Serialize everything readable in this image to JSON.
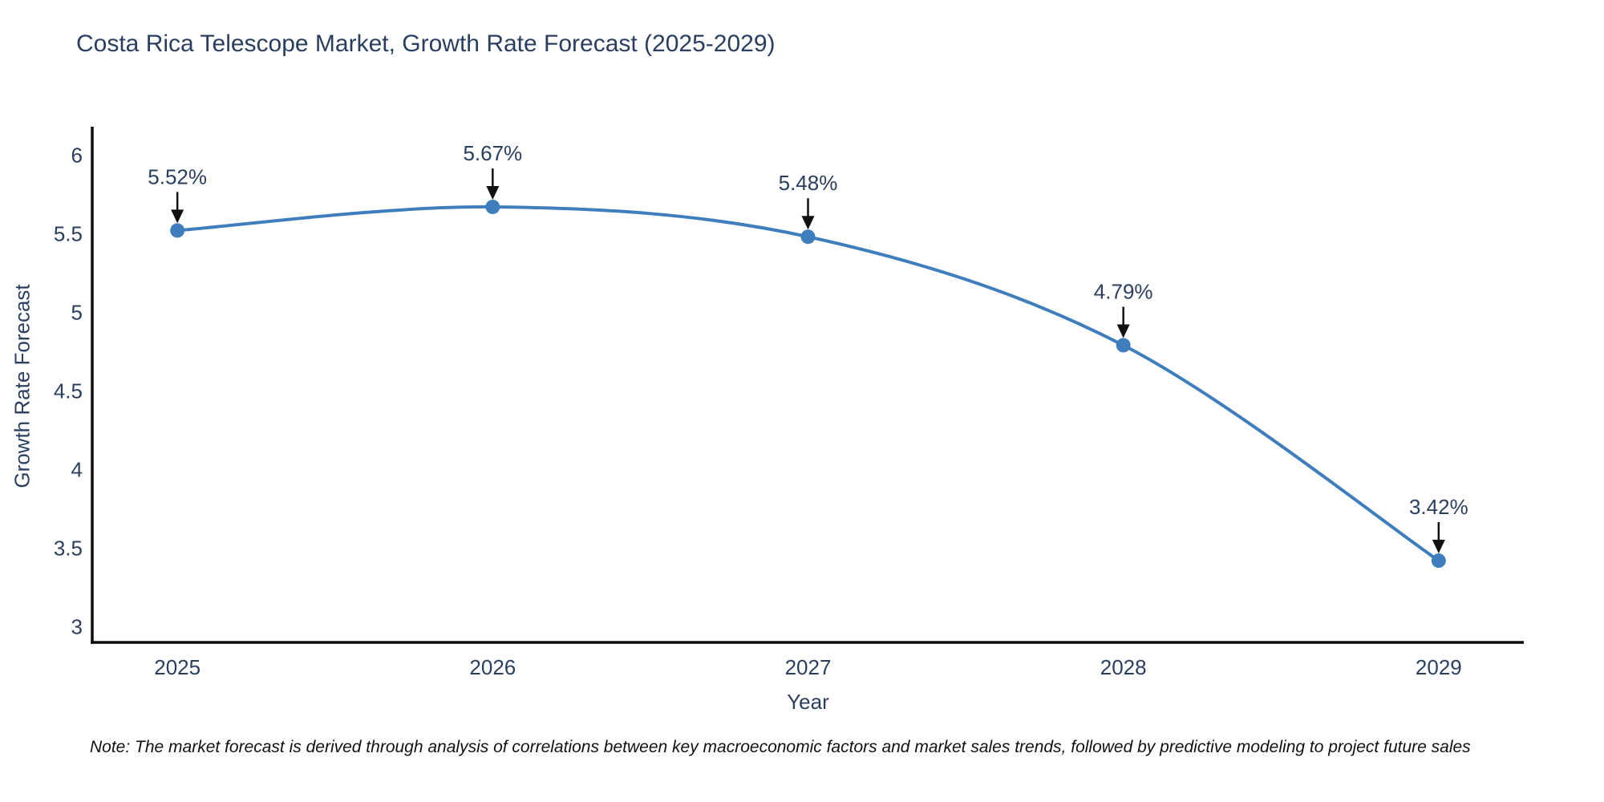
{
  "title": "Costa Rica Telescope Market, Growth Rate Forecast (2025-2029)",
  "note": "Note: The market forecast is derived through analysis of correlations between key macroeconomic factors and market sales trends, followed by predictive modeling to project future sales",
  "chart_data": {
    "type": "line",
    "title": "Costa Rica Telescope Market, Growth Rate Forecast (2025-2029)",
    "xlabel": "Year",
    "ylabel": "Growth Rate Forecast",
    "x": [
      2025,
      2026,
      2027,
      2028,
      2029
    ],
    "series": [
      {
        "name": "Growth Rate Forecast",
        "values": [
          5.52,
          5.67,
          5.48,
          4.79,
          3.42
        ]
      }
    ],
    "point_labels": [
      "5.52%",
      "5.67%",
      "5.48%",
      "4.79%",
      "3.42%"
    ],
    "xticks": [
      "2025",
      "2026",
      "2027",
      "2028",
      "2029"
    ],
    "yticks": [
      3,
      3.5,
      4,
      4.5,
      5,
      5.5,
      6
    ],
    "xlim": [
      2024.73,
      2029.27
    ],
    "ylim": [
      2.9,
      6.18
    ],
    "grid": false,
    "legend": "none",
    "line_shape": "spline",
    "colors": {
      "line": "#3f7ebd",
      "marker": "#3f7ebd",
      "arrow": "#111111",
      "text": "#2a3f5f",
      "axis": "#0d0d0d"
    }
  }
}
